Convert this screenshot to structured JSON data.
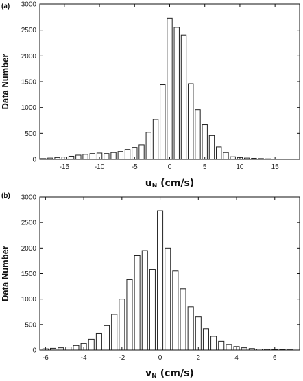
{
  "chart_data": [
    {
      "type": "bar",
      "panel_label": "(a)",
      "ylabel": "Data Number",
      "xlabel_main": "u",
      "xlabel_sub": "N",
      "xlabel_unit": " (cm/s)",
      "xlim": [
        -18.5,
        18.5
      ],
      "ylim": [
        0,
        3000
      ],
      "xticks": [
        -15,
        -10,
        -5,
        0,
        5,
        10,
        15
      ],
      "yticks": [
        0,
        500,
        1000,
        1500,
        2000,
        2500,
        3000
      ],
      "grid": false,
      "bin_width": 1,
      "x": [
        -18,
        -17,
        -16,
        -15,
        -14,
        -13,
        -12,
        -11,
        -10,
        -9,
        -8,
        -7,
        -6,
        -5,
        -4,
        -3,
        -2,
        -1,
        0,
        1,
        2,
        3,
        4,
        5,
        6,
        7,
        8,
        9,
        10,
        11,
        12,
        13,
        14,
        15,
        16,
        17,
        18
      ],
      "values": [
        15,
        25,
        35,
        45,
        60,
        80,
        95,
        110,
        120,
        110,
        130,
        150,
        190,
        230,
        280,
        520,
        770,
        1440,
        2730,
        2550,
        2400,
        1460,
        960,
        670,
        460,
        240,
        130,
        50,
        35,
        25,
        20,
        15,
        10,
        5,
        5,
        5,
        5
      ]
    },
    {
      "type": "bar",
      "panel_label": "(b)",
      "ylabel": "Data Number",
      "xlabel_main": "v",
      "xlabel_sub": "N",
      "xlabel_unit": " (cm/s)",
      "xlim": [
        -6.3,
        7.3
      ],
      "ylim": [
        0,
        3000
      ],
      "xticks": [
        -6,
        -4,
        -2,
        0,
        2,
        4,
        6
      ],
      "yticks": [
        0,
        500,
        1000,
        1500,
        2000,
        2500,
        3000
      ],
      "grid": false,
      "bin_width": 0.4,
      "x": [
        -6.0,
        -5.6,
        -5.2,
        -4.8,
        -4.4,
        -4.0,
        -3.6,
        -3.2,
        -2.8,
        -2.4,
        -2.0,
        -1.6,
        -1.2,
        -0.8,
        -0.4,
        0.0,
        0.4,
        0.8,
        1.2,
        1.6,
        2.0,
        2.4,
        2.8,
        3.2,
        3.6,
        4.0,
        4.4,
        4.8,
        5.2,
        5.6,
        6.0,
        6.4,
        6.8
      ],
      "values": [
        25,
        35,
        45,
        60,
        90,
        130,
        210,
        330,
        480,
        700,
        1000,
        1380,
        1850,
        1950,
        1580,
        2730,
        2000,
        1550,
        1200,
        850,
        650,
        420,
        270,
        170,
        110,
        70,
        45,
        30,
        20,
        15,
        10,
        10,
        5
      ]
    }
  ]
}
